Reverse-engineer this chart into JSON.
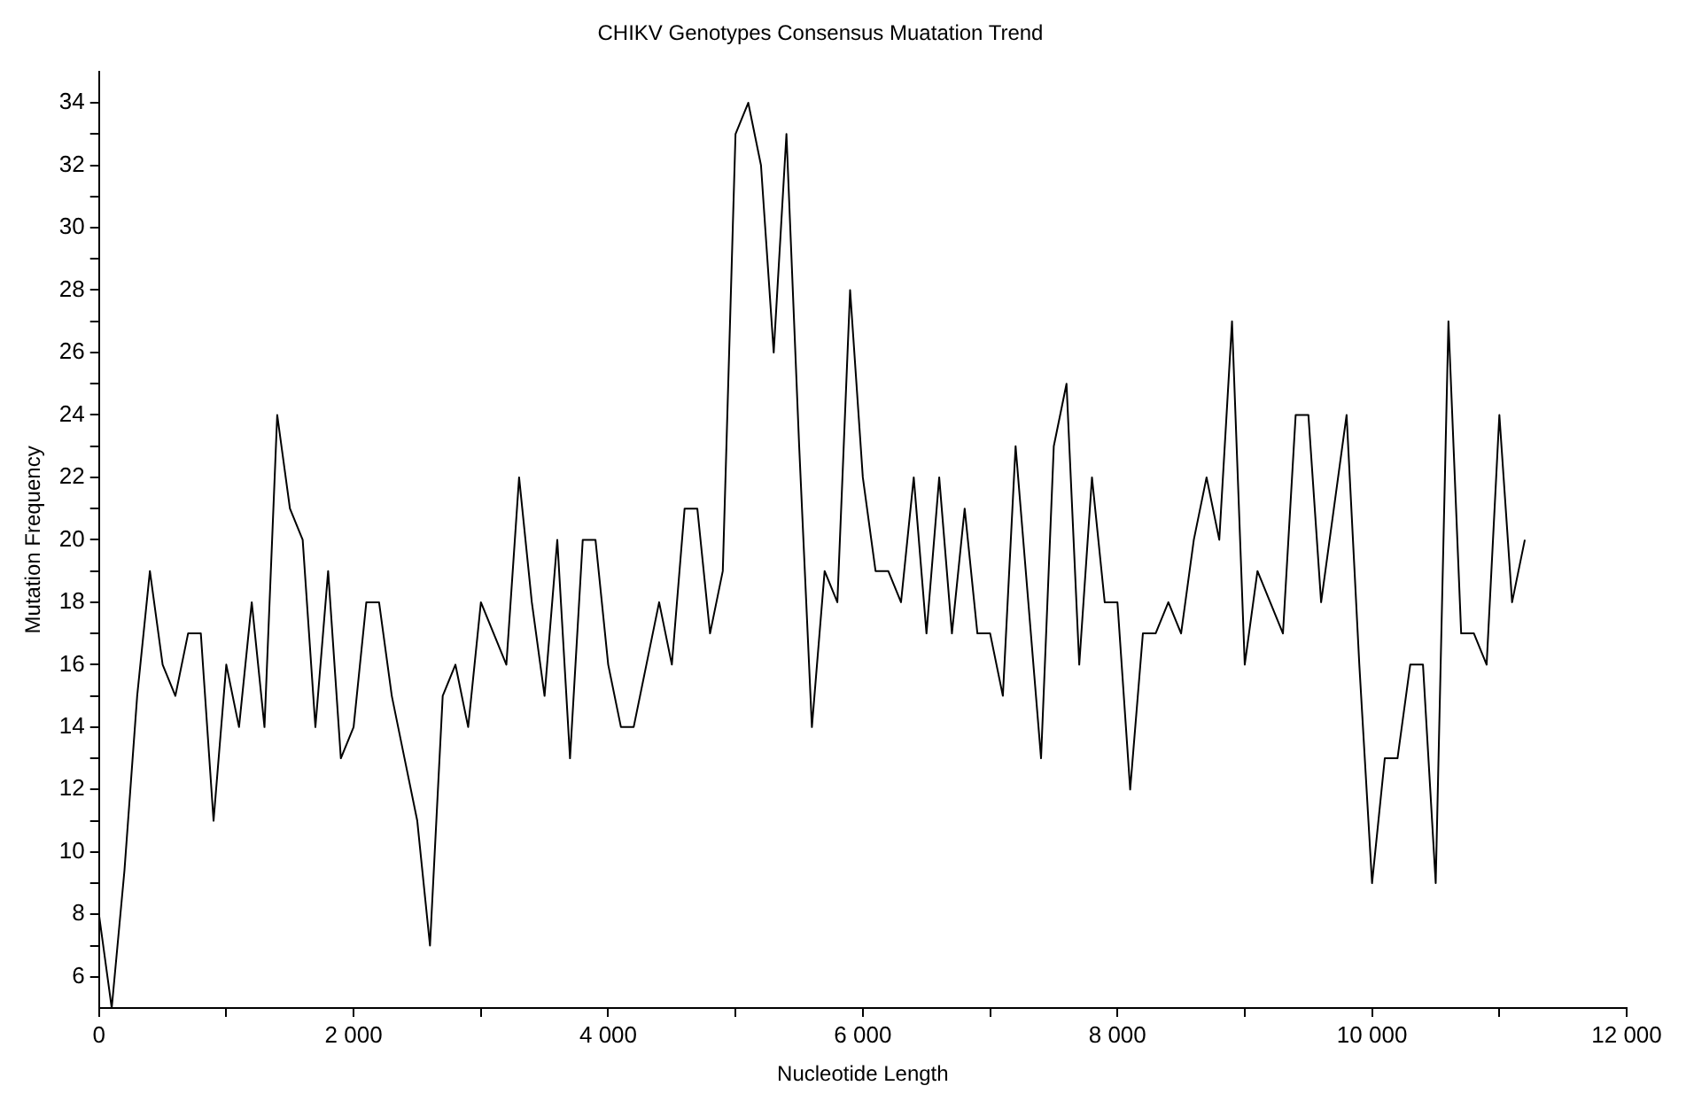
{
  "chart_data": {
    "type": "line",
    "title": "CHIKV Genotypes Consensus Muatation Trend",
    "xlabel": "Nucleotide Length",
    "ylabel": "Mutation Frequency",
    "x": [
      0,
      100,
      200,
      300,
      400,
      500,
      600,
      700,
      800,
      900,
      1000,
      1100,
      1200,
      1300,
      1400,
      1500,
      1600,
      1700,
      1800,
      1900,
      2000,
      2100,
      2200,
      2300,
      2400,
      2500,
      2600,
      2700,
      2800,
      2900,
      3000,
      3100,
      3200,
      3300,
      3400,
      3500,
      3600,
      3700,
      3800,
      3900,
      4000,
      4100,
      4200,
      4300,
      4400,
      4500,
      4600,
      4700,
      4800,
      4900,
      5000,
      5100,
      5200,
      5300,
      5400,
      5500,
      5600,
      5700,
      5800,
      5900,
      6000,
      6100,
      6200,
      6300,
      6400,
      6500,
      6600,
      6700,
      6800,
      6900,
      7000,
      7100,
      7200,
      7300,
      7400,
      7500,
      7600,
      7700,
      7800,
      7900,
      8000,
      8100,
      8200,
      8300,
      8400,
      8500,
      8600,
      8700,
      8800,
      8900,
      9000,
      9100,
      9200,
      9300,
      9400,
      9500,
      9600,
      9700,
      9800,
      9900,
      10000,
      10100,
      10200,
      10300,
      10400,
      10500,
      10600,
      10700,
      10800,
      10900,
      11000,
      11100,
      11200
    ],
    "series": [
      {
        "color": "#000000",
        "values": [
          8,
          5,
          9.4,
          15,
          19,
          16,
          15,
          17,
          17,
          11,
          16,
          14,
          18,
          14,
          24,
          21,
          20,
          14,
          19,
          13,
          14,
          18,
          18,
          15,
          13,
          11,
          7,
          15,
          16,
          14,
          18,
          17,
          16,
          22,
          18,
          15,
          20,
          13,
          20,
          20,
          16,
          14,
          14,
          16,
          18,
          16,
          21,
          21,
          17,
          19,
          33,
          34,
          32,
          26,
          33,
          23,
          14,
          19,
          18,
          28,
          22,
          19,
          19,
          18,
          22,
          17,
          22,
          17,
          21,
          17,
          17,
          15,
          23,
          18,
          13,
          23,
          25,
          16,
          22,
          18,
          18,
          12,
          17,
          17,
          18,
          17,
          20,
          22,
          20,
          27,
          16,
          19,
          18,
          17,
          24,
          24,
          18,
          21,
          24,
          16,
          9,
          13,
          13,
          16,
          16,
          9,
          27,
          17,
          17,
          16,
          24,
          18,
          20
        ]
      }
    ],
    "xlim": [
      0,
      12000
    ],
    "ylim": [
      5,
      35
    ],
    "xticks": [
      0,
      {
        "value": 1000,
        "label": null
      },
      {
        "value": 2000,
        "label": "2 000"
      },
      {
        "value": 3000,
        "label": null
      },
      {
        "value": 4000,
        "label": "4 000"
      },
      {
        "value": 5000,
        "label": null
      },
      {
        "value": 6000,
        "label": "6 000"
      },
      {
        "value": 7000,
        "label": null
      },
      {
        "value": 8000,
        "label": "8 000"
      },
      {
        "value": 9000,
        "label": null
      },
      {
        "value": 10000,
        "label": "10 000"
      },
      {
        "value": 11000,
        "label": null
      },
      {
        "value": 12000,
        "label": "12 000"
      }
    ],
    "yticks": [
      6,
      {
        "value": 7,
        "label": null
      },
      8,
      {
        "value": 9,
        "label": null
      },
      10,
      {
        "value": 11,
        "label": null
      },
      12,
      {
        "value": 13,
        "label": null
      },
      14,
      {
        "value": 15,
        "label": null
      },
      16,
      {
        "value": 17,
        "label": null
      },
      18,
      {
        "value": 19,
        "label": null
      },
      20,
      {
        "value": 21,
        "label": null
      },
      22,
      {
        "value": 23,
        "label": null
      },
      24,
      {
        "value": 25,
        "label": null
      },
      26,
      {
        "value": 27,
        "label": null
      },
      28,
      {
        "value": 29,
        "label": null
      },
      30,
      {
        "value": 31,
        "label": null
      },
      32,
      {
        "value": 33,
        "label": null
      },
      34
    ],
    "grid": false,
    "legend": false,
    "marker": "none",
    "line_style": "solid"
  }
}
